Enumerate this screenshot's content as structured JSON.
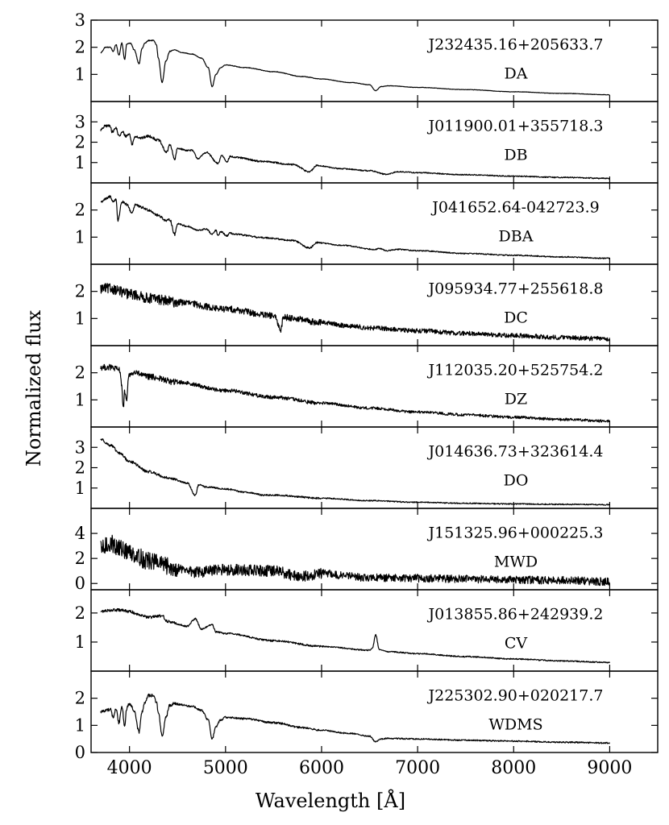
{
  "figure": {
    "ylabel": "Normalized flux",
    "xlabel": "Wavelength [Å]"
  },
  "chart_data": {
    "type": "line",
    "ylabel": "Normalized flux",
    "xlabel": "Wavelength [Å]",
    "xlim": [
      3600,
      9500
    ],
    "x_ticks": [
      4000,
      5000,
      6000,
      7000,
      8000,
      9000
    ],
    "x_tick_labels": [
      "4000",
      "5000",
      "6000",
      "7000",
      "8000",
      "9000"
    ],
    "grid": false,
    "panels": [
      {
        "name": "J232435.16+205633.7",
        "class": "DA",
        "ylim": [
          0,
          3
        ],
        "y_ticks": [
          1,
          2,
          3
        ],
        "y_tick_labels": [
          "1",
          "2",
          "3"
        ],
        "x": [
          3700,
          3750,
          3800,
          3830,
          3860,
          3890,
          3920,
          3950,
          3970,
          3990,
          4010,
          4050,
          4100,
          4130,
          4160,
          4200,
          4250,
          4280,
          4300,
          4340,
          4380,
          4420,
          4470,
          4550,
          4650,
          4750,
          4820,
          4861,
          4900,
          4950,
          5000,
          5200,
          5500,
          5800,
          6000,
          6300,
          6500,
          6563,
          6620,
          6700,
          7000,
          7500,
          8000,
          8500,
          9000
        ],
        "values": [
          1.8,
          2.0,
          2.0,
          1.85,
          2.1,
          1.7,
          2.15,
          1.55,
          2.1,
          2.15,
          2.15,
          1.9,
          1.4,
          1.95,
          2.15,
          2.25,
          2.25,
          2.1,
          1.6,
          0.7,
          1.5,
          1.85,
          1.9,
          1.8,
          1.75,
          1.6,
          1.25,
          0.55,
          1.0,
          1.25,
          1.35,
          1.25,
          1.1,
          0.92,
          0.83,
          0.7,
          0.62,
          0.4,
          0.55,
          0.58,
          0.52,
          0.44,
          0.36,
          0.3,
          0.25
        ],
        "noise": 0.01
      },
      {
        "name": "J011900.01+355718.3",
        "class": "DB",
        "ylim": [
          0,
          4
        ],
        "y_ticks": [
          1,
          2,
          3
        ],
        "y_tick_labels": [
          "1",
          "2",
          "3"
        ],
        "x": [
          3700,
          3750,
          3800,
          3820,
          3860,
          3890,
          3930,
          3960,
          4000,
          4026,
          4060,
          4120,
          4200,
          4300,
          4388,
          4420,
          4471,
          4500,
          4600,
          4650,
          4713,
          4800,
          4922,
          4960,
          5015,
          5050,
          5100,
          5400,
          5700,
          5876,
          5950,
          6200,
          6500,
          6678,
          6800,
          7000,
          7500,
          8000,
          8500,
          9000
        ],
        "values": [
          2.6,
          2.8,
          2.8,
          2.5,
          2.7,
          2.3,
          2.5,
          2.3,
          2.4,
          1.9,
          2.3,
          2.2,
          2.3,
          2.1,
          1.5,
          1.9,
          1.15,
          1.7,
          1.6,
          1.6,
          1.2,
          1.5,
          0.95,
          1.35,
          1.05,
          1.3,
          1.25,
          1.05,
          0.9,
          0.55,
          0.85,
          0.7,
          0.6,
          0.42,
          0.55,
          0.5,
          0.4,
          0.33,
          0.27,
          0.22
        ],
        "noise": 0.04
      },
      {
        "name": "J041652.64-042723.9",
        "class": "DBA",
        "ylim": [
          0,
          3
        ],
        "y_ticks": [
          1,
          2
        ],
        "y_tick_labels": [
          "1",
          "2"
        ],
        "x": [
          3700,
          3750,
          3800,
          3830,
          3860,
          3880,
          3920,
          3970,
          4026,
          4060,
          4120,
          4200,
          4300,
          4388,
          4420,
          4471,
          4500,
          4600,
          4713,
          4800,
          4861,
          4900,
          4922,
          4950,
          5015,
          5050,
          5100,
          5400,
          5700,
          5876,
          5950,
          6200,
          6563,
          6600,
          6678,
          6800,
          7000,
          7500,
          8000,
          8500,
          9000
        ],
        "values": [
          2.3,
          2.4,
          2.5,
          2.3,
          2.4,
          1.6,
          2.3,
          2.2,
          1.9,
          2.2,
          2.1,
          2.0,
          1.8,
          1.6,
          1.65,
          1.1,
          1.5,
          1.4,
          1.25,
          1.3,
          1.1,
          1.25,
          1.05,
          1.2,
          1.05,
          1.15,
          1.1,
          0.98,
          0.88,
          0.6,
          0.8,
          0.7,
          0.55,
          0.58,
          0.5,
          0.55,
          0.5,
          0.4,
          0.33,
          0.27,
          0.22
        ],
        "noise": 0.03
      },
      {
        "name": "J095934.77+255618.8",
        "class": "DC",
        "ylim": [
          0,
          3
        ],
        "y_ticks": [
          1,
          2
        ],
        "y_tick_labels": [
          "1",
          "2"
        ],
        "x": [
          3700,
          3800,
          4000,
          4200,
          4500,
          5000,
          5500,
          5577,
          5600,
          6000,
          6300,
          6500,
          7000,
          7500,
          8000,
          8500,
          9000
        ],
        "values": [
          2.1,
          2.1,
          1.9,
          1.75,
          1.6,
          1.35,
          1.1,
          0.6,
          1.05,
          0.85,
          0.72,
          0.65,
          0.55,
          0.45,
          0.37,
          0.3,
          0.25
        ],
        "noise": 0.12
      },
      {
        "name": "J112035.20+525754.2",
        "class": "DZ",
        "ylim": [
          0,
          3
        ],
        "y_ticks": [
          1,
          2
        ],
        "y_tick_labels": [
          "1",
          "2"
        ],
        "x": [
          3700,
          3800,
          3900,
          3920,
          3934,
          3950,
          3968,
          3990,
          4050,
          4200,
          4500,
          5000,
          5500,
          6000,
          6500,
          7000,
          7500,
          8000,
          8500,
          9000
        ],
        "values": [
          2.2,
          2.2,
          2.1,
          1.5,
          0.65,
          1.3,
          0.9,
          1.9,
          2.0,
          1.85,
          1.65,
          1.35,
          1.1,
          0.88,
          0.7,
          0.55,
          0.45,
          0.36,
          0.28,
          0.22
        ],
        "noise": 0.07
      },
      {
        "name": "J014636.73+323614.4",
        "class": "DO",
        "ylim": [
          0,
          4
        ],
        "y_ticks": [
          1,
          2,
          3
        ],
        "y_tick_labels": [
          "1",
          "2",
          "3"
        ],
        "x": [
          3700,
          3800,
          3900,
          4000,
          4200,
          4400,
          4600,
          4686,
          4720,
          4800,
          5000,
          5200,
          5412,
          5500,
          6000,
          6500,
          7000,
          7500,
          8000,
          8500,
          9000
        ],
        "values": [
          3.4,
          3.1,
          2.7,
          2.3,
          1.8,
          1.5,
          1.25,
          0.65,
          1.15,
          1.05,
          0.95,
          0.8,
          0.65,
          0.65,
          0.5,
          0.38,
          0.3,
          0.25,
          0.22,
          0.2,
          0.18
        ],
        "noise": 0.04
      },
      {
        "name": "J151325.96+000225.3",
        "class": "MWD",
        "ylim": [
          -0.5,
          6
        ],
        "y_ticks": [
          0,
          2,
          4
        ],
        "y_tick_labels": [
          "0",
          "2",
          "4"
        ],
        "x": [
          3700,
          3800,
          3900,
          4000,
          4200,
          4500,
          4700,
          5000,
          5500,
          5800,
          6000,
          6200,
          6500,
          7000,
          7500,
          8000,
          8500,
          9000
        ],
        "values": [
          2.7,
          3.2,
          2.8,
          2.5,
          1.8,
          1.2,
          0.9,
          1.1,
          1.0,
          0.55,
          0.85,
          0.65,
          0.45,
          0.42,
          0.35,
          0.3,
          0.25,
          0.15
        ],
        "noise": 0.45
      },
      {
        "name": "J013855.86+242939.2",
        "class": "CV",
        "ylim": [
          0,
          2.8
        ],
        "y_ticks": [
          1,
          2
        ],
        "y_tick_labels": [
          "1",
          "2"
        ],
        "x": [
          3700,
          3800,
          3900,
          4000,
          4100,
          4200,
          4340,
          4400,
          4600,
          4686,
          4750,
          4861,
          4900,
          5000,
          5500,
          6000,
          6500,
          6530,
          6563,
          6600,
          6700,
          7000,
          7500,
          8000,
          8500,
          9000
        ],
        "values": [
          2.05,
          2.1,
          2.1,
          2.05,
          1.95,
          1.85,
          1.9,
          1.7,
          1.55,
          1.8,
          1.45,
          1.6,
          1.35,
          1.3,
          1.05,
          0.85,
          0.72,
          0.8,
          1.25,
          0.75,
          0.67,
          0.6,
          0.5,
          0.42,
          0.35,
          0.3
        ],
        "noise": 0.03
      },
      {
        "name": "J225302.90+020217.7",
        "class": "WDMS",
        "ylim": [
          0,
          3
        ],
        "y_ticks": [
          0,
          1,
          2
        ],
        "y_tick_labels": [
          "0",
          "1",
          "2"
        ],
        "x": [
          3700,
          3750,
          3800,
          3830,
          3860,
          3890,
          3920,
          3950,
          3970,
          3990,
          4010,
          4050,
          4100,
          4130,
          4160,
          4200,
          4250,
          4280,
          4300,
          4340,
          4380,
          4420,
          4470,
          4550,
          4650,
          4750,
          4820,
          4861,
          4900,
          4950,
          5000,
          5200,
          5500,
          5800,
          6000,
          6300,
          6500,
          6563,
          6620,
          6700,
          7000,
          7500,
          8000,
          8500,
          9000
        ],
        "values": [
          1.5,
          1.55,
          1.6,
          1.3,
          1.6,
          1.1,
          1.7,
          1.0,
          1.6,
          1.75,
          1.75,
          1.5,
          0.75,
          1.5,
          1.85,
          2.1,
          2.1,
          1.85,
          1.5,
          0.6,
          1.3,
          1.75,
          1.8,
          1.75,
          1.7,
          1.55,
          1.2,
          0.5,
          0.95,
          1.2,
          1.3,
          1.25,
          1.1,
          0.92,
          0.82,
          0.7,
          0.6,
          0.4,
          0.5,
          0.52,
          0.5,
          0.45,
          0.42,
          0.38,
          0.35
        ],
        "noise": 0.035
      }
    ]
  }
}
